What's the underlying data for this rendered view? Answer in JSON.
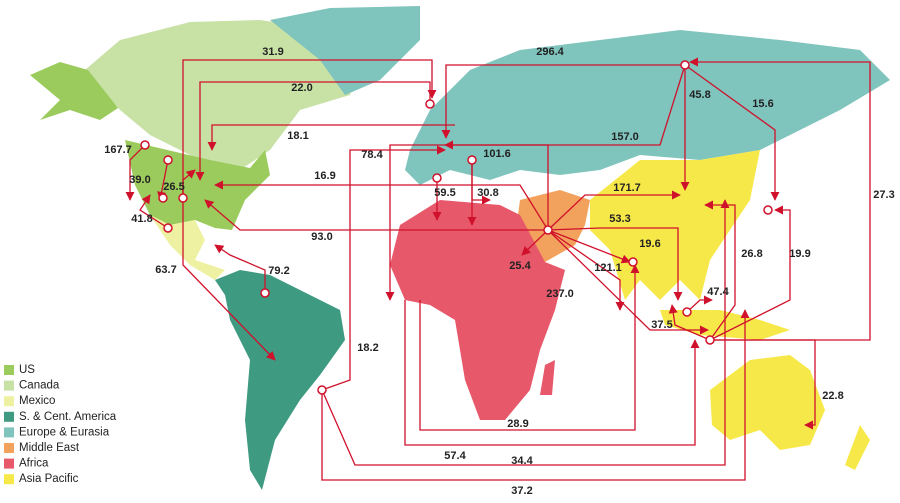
{
  "legend": [
    {
      "label": "US",
      "color": "#9bcb5c"
    },
    {
      "label": "Canada",
      "color": "#c8e2a6"
    },
    {
      "label": "Mexico",
      "color": "#eef1a2"
    },
    {
      "label": "S. & Cent. America",
      "color": "#3e9a80"
    },
    {
      "label": "Europe & Eurasia",
      "color": "#7fc4bd"
    },
    {
      "label": "Middle East",
      "color": "#f2a25d"
    },
    {
      "label": "Africa",
      "color": "#e8586b"
    },
    {
      "label": "Asia Pacific",
      "color": "#f7e84a"
    }
  ],
  "flows": [
    "31.9",
    "296.4",
    "22.0",
    "45.8",
    "15.6",
    "18.1",
    "157.0",
    "167.7",
    "101.6",
    "78.4",
    "39.0",
    "16.9",
    "171.7",
    "27.3",
    "59.5",
    "30.8",
    "26.5",
    "41.8",
    "53.3",
    "93.0",
    "19.6",
    "26.8",
    "19.9",
    "25.4",
    "121.1",
    "63.7",
    "79.2",
    "47.4",
    "237.0",
    "37.5",
    "18.2",
    "22.8",
    "28.9",
    "57.4",
    "34.4",
    "37.2"
  ]
}
